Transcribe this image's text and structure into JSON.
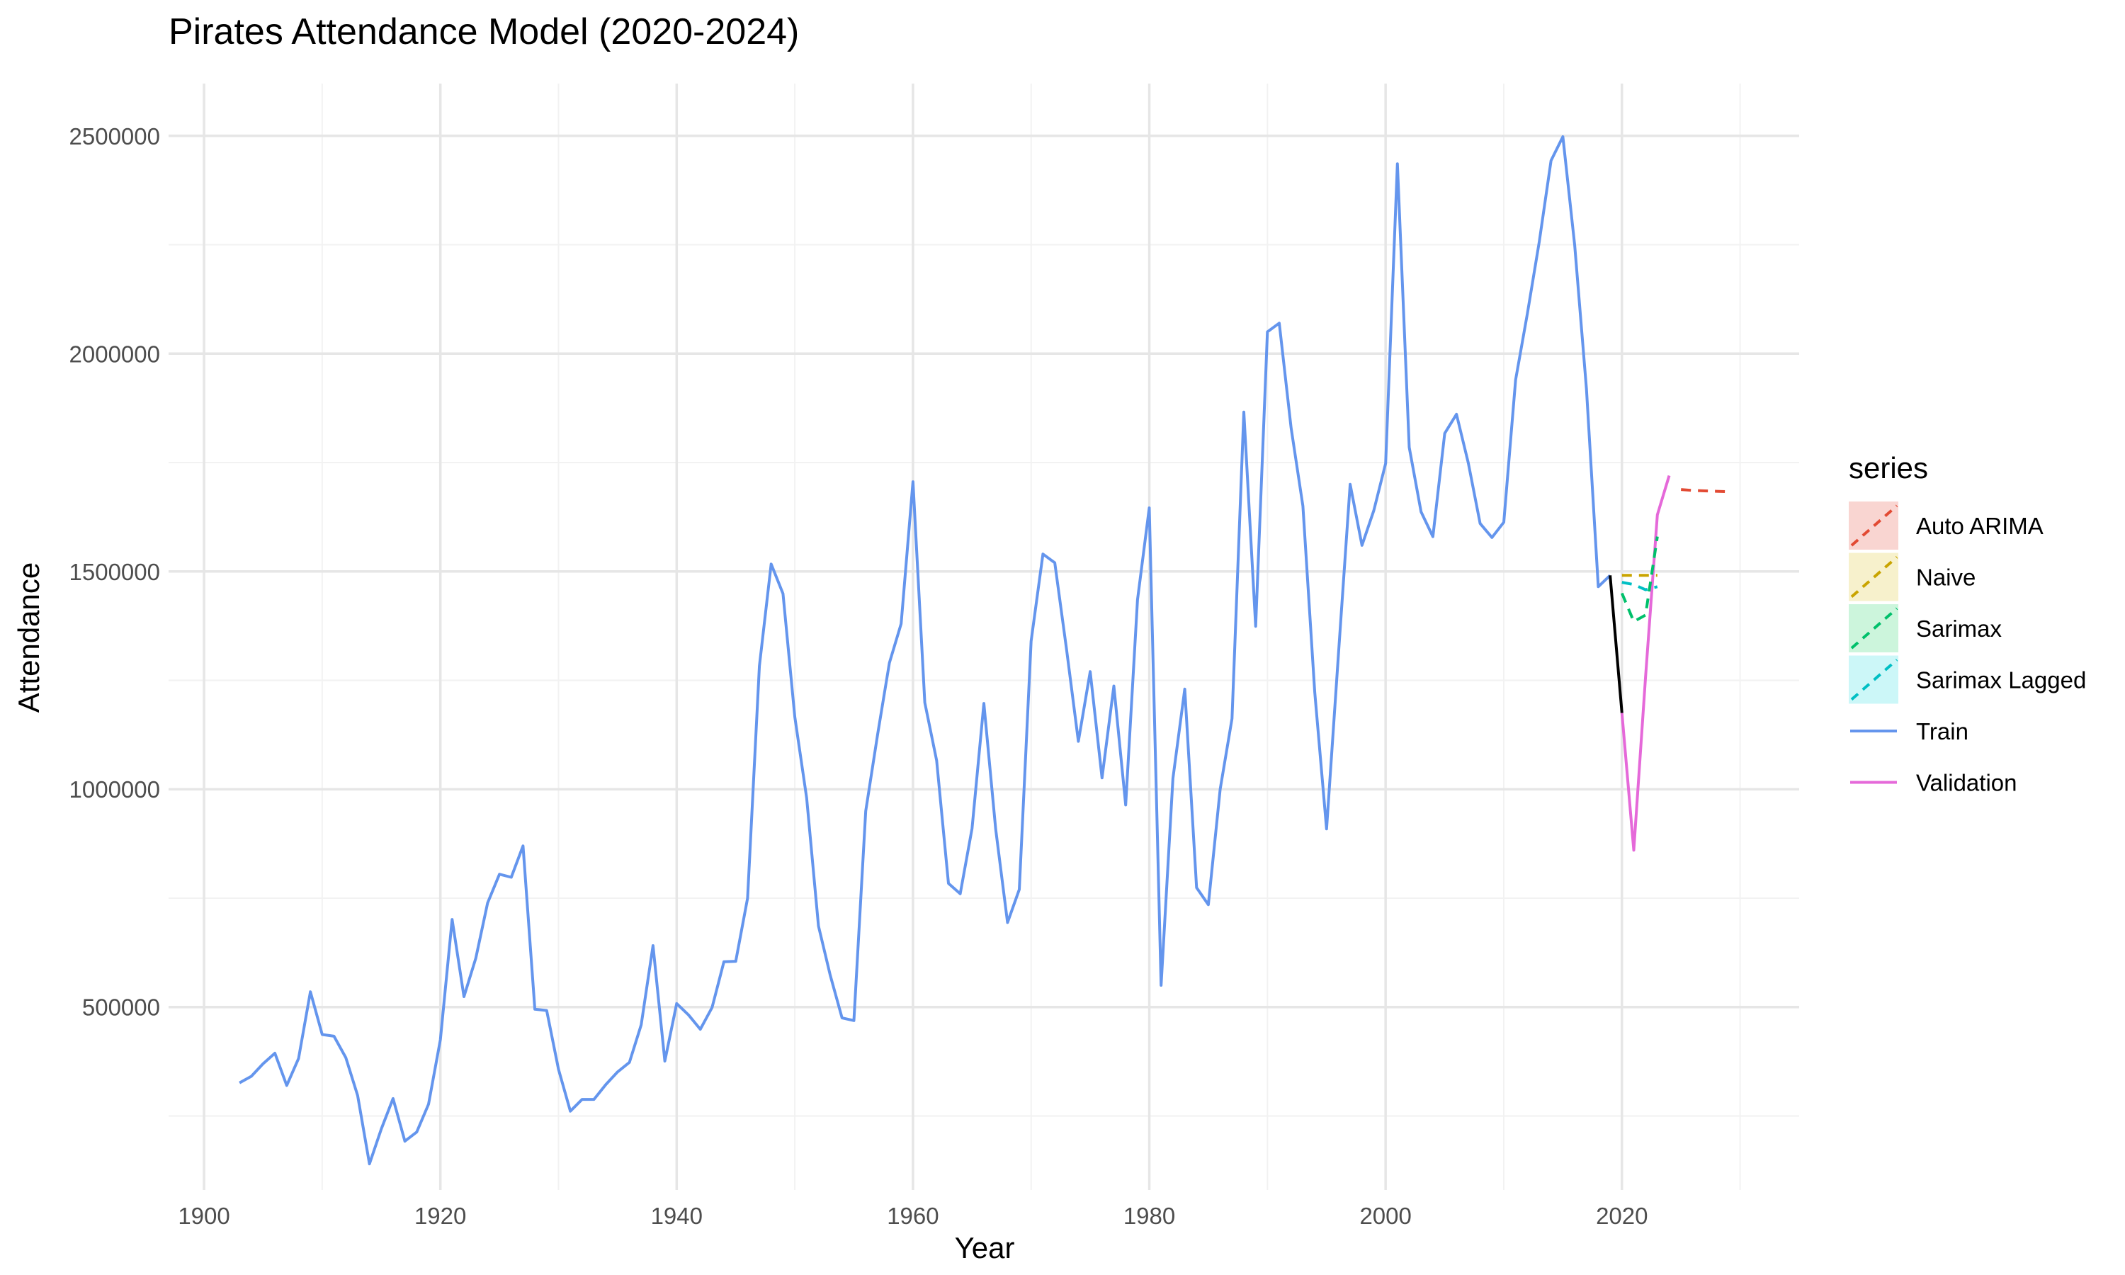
{
  "chart_data": {
    "type": "line",
    "title": "Pirates Attendance Model (2020-2024)",
    "xlabel": "Year",
    "ylabel": "Attendance",
    "xlim": [
      1897,
      2035
    ],
    "ylim": [
      80000,
      2620000
    ],
    "x_ticks": [
      1900,
      1920,
      1940,
      1960,
      1980,
      2000,
      2020
    ],
    "x_tick_labels": [
      "1900",
      "1920",
      "1940",
      "1960",
      "1980",
      "2000",
      "2020"
    ],
    "y_ticks": [
      500000,
      1000000,
      1500000,
      2000000,
      2500000
    ],
    "y_tick_labels": [
      "500000",
      "1000000",
      "1500000",
      "2000000",
      "2500000"
    ],
    "grid": true,
    "legend": {
      "title": "series",
      "position": "right",
      "entries": [
        {
          "label": "Auto ARIMA",
          "color": "#e24a33",
          "dashed": true,
          "fill": "#f9d5d1"
        },
        {
          "label": "Naive",
          "color": "#c9a400",
          "dashed": true,
          "fill": "#f7f1cc"
        },
        {
          "label": "Sarimax",
          "color": "#00c06b",
          "dashed": true,
          "fill": "#ccf5dc"
        },
        {
          "label": "Sarimax Lagged",
          "color": "#00bfc4",
          "dashed": true,
          "fill": "#ccf7f8"
        },
        {
          "label": "Train",
          "color": "#6495ed",
          "dashed": false,
          "fill": null
        },
        {
          "label": "Validation",
          "color": "#e569d9",
          "dashed": false,
          "fill": null
        }
      ]
    },
    "series": [
      {
        "name": "Train",
        "color": "#6495ed",
        "dashed": false,
        "x": [
          1903,
          1904,
          1905,
          1906,
          1907,
          1908,
          1909,
          1910,
          1911,
          1912,
          1913,
          1914,
          1915,
          1916,
          1917,
          1918,
          1919,
          1920,
          1921,
          1922,
          1923,
          1924,
          1925,
          1926,
          1927,
          1928,
          1929,
          1930,
          1931,
          1932,
          1933,
          1934,
          1935,
          1936,
          1937,
          1938,
          1939,
          1940,
          1941,
          1942,
          1943,
          1944,
          1945,
          1946,
          1947,
          1948,
          1949,
          1950,
          1951,
          1952,
          1953,
          1954,
          1955,
          1956,
          1957,
          1958,
          1959,
          1960,
          1961,
          1962,
          1963,
          1964,
          1965,
          1966,
          1967,
          1968,
          1969,
          1970,
          1971,
          1972,
          1973,
          1974,
          1975,
          1976,
          1977,
          1978,
          1979,
          1980,
          1981,
          1982,
          1983,
          1984,
          1985,
          1986,
          1987,
          1988,
          1989,
          1990,
          1991,
          1992,
          1993,
          1994,
          1995,
          1996,
          1997,
          1998,
          1999,
          2000,
          2001,
          2002,
          2003,
          2004,
          2005,
          2006,
          2007,
          2008,
          2009,
          2010,
          2011,
          2012,
          2013,
          2014,
          2015,
          2016,
          2017,
          2018,
          2019
        ],
        "y": [
          326000,
          341000,
          370000,
          394000,
          320000,
          382000,
          535000,
          437000,
          433000,
          384000,
          297000,
          140000,
          220000,
          290000,
          192000,
          213000,
          277000,
          425000,
          701000,
          524000,
          612000,
          739000,
          805000,
          798000,
          870000,
          495000,
          492000,
          357000,
          261000,
          288000,
          288000,
          322000,
          351000,
          373000,
          459000,
          641000,
          376000,
          508000,
          482000,
          449000,
          499000,
          604000,
          605000,
          750000,
          1283000,
          1517000,
          1449000,
          1166000,
          980000,
          686000,
          573000,
          475000,
          469000,
          950000,
          1125000,
          1290000,
          1380000,
          1706000,
          1199000,
          1066000,
          784000,
          760000,
          910000,
          1197000,
          908000,
          694000,
          770000,
          1340000,
          1540000,
          1520000,
          1320000,
          1110000,
          1270000,
          1026000,
          1237000,
          964000,
          1435000,
          1646000,
          550000,
          1025000,
          1230000,
          774000,
          735000,
          1000000,
          1162000,
          1866000,
          1374000,
          2050000,
          2070000,
          1830000,
          1650000,
          1223000,
          909000,
          1306000,
          1700000,
          1560000,
          1640000,
          1748000,
          2436000,
          1785000,
          1637000,
          1580000,
          1817000,
          1861000,
          1749000,
          1610000,
          1578000,
          1613000,
          1940000,
          2092000,
          2256000,
          2443000,
          2498000,
          2249000,
          1919000,
          1465000,
          1491000
        ]
      },
      {
        "name": "",
        "color": "#000000",
        "dashed": false,
        "x": [
          2019,
          2020
        ],
        "y": [
          1491000,
          1175000
        ]
      },
      {
        "name": "Validation",
        "color": "#e569d9",
        "dashed": false,
        "x": [
          2020,
          2021,
          2022,
          2023,
          2024
        ],
        "y": [
          1175000,
          860000,
          1257000,
          1630000,
          1720000
        ]
      },
      {
        "name": "Naive",
        "color": "#c9a400",
        "dashed": true,
        "x": [
          2020,
          2021,
          2022,
          2023
        ],
        "y": [
          1491000,
          1491000,
          1491000,
          1491000
        ]
      },
      {
        "name": "Sarimax",
        "color": "#00c06b",
        "dashed": true,
        "x": [
          2020,
          2021,
          2022,
          2023
        ],
        "y": [
          1450000,
          1385000,
          1400000,
          1580000
        ]
      },
      {
        "name": "Sarimax Lagged",
        "color": "#00bfc4",
        "dashed": true,
        "x": [
          2020,
          2021,
          2022,
          2023
        ],
        "y": [
          1475000,
          1470000,
          1458000,
          1465000
        ]
      },
      {
        "name": "Auto ARIMA",
        "color": "#e24a33",
        "dashed": true,
        "x": [
          2025,
          2026,
          2027,
          2028,
          2029
        ],
        "y": [
          1688000,
          1686000,
          1685000,
          1684000,
          1683000
        ]
      }
    ]
  }
}
